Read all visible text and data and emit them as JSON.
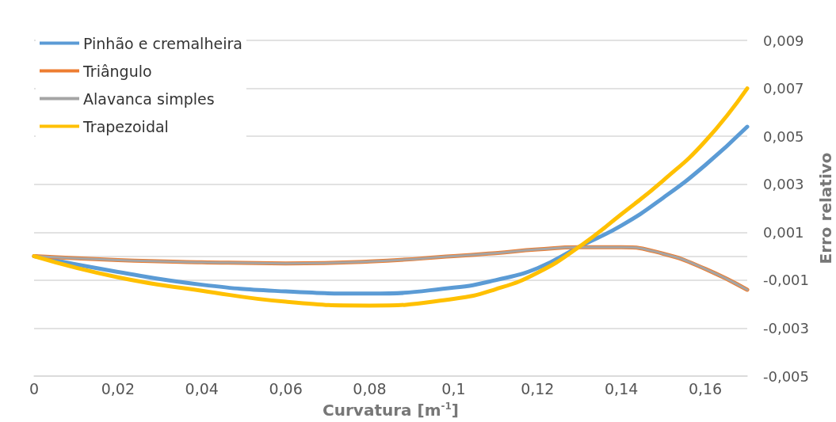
{
  "chart_data": {
    "type": "line",
    "xlabel": "Curvatura [m$^{-1}$]",
    "ylabel": "Erro relativo",
    "xlim": [
      0,
      0.17
    ],
    "xticks": [
      0,
      {
        "value": 0.02,
        "label": "0,02"
      },
      {
        "value": 0.04,
        "label": "0,04"
      },
      {
        "value": 0.06,
        "label": "0,06"
      },
      {
        "value": 0.08,
        "label": "0,08"
      },
      {
        "value": 0.1,
        "label": "0,1"
      },
      {
        "value": 0.12,
        "label": "0,12"
      },
      {
        "value": 0.14,
        "label": "0,14"
      },
      {
        "value": 0.16,
        "label": "0,16"
      }
    ],
    "ylim": [
      -0.005,
      0.009
    ],
    "yticks": [
      {
        "value": -0.005,
        "label": "-0,005"
      },
      {
        "value": -0.003,
        "label": "-0,003"
      },
      {
        "value": -0.001,
        "label": "-0,001"
      },
      {
        "value": 0.001,
        "label": "0,001"
      },
      {
        "value": 0.003,
        "label": "0,003"
      },
      {
        "value": 0.005,
        "label": "0,005"
      },
      {
        "value": 0.007,
        "label": "0,007"
      },
      {
        "value": 0.009,
        "label": "0,009"
      }
    ],
    "x": [
      0,
      0.02,
      0.04,
      0.06,
      0.08,
      0.1,
      0.11,
      0.12,
      0.13,
      0.14,
      0.15,
      0.16,
      0.17
    ],
    "series": [
      {
        "name": "Pinhão e cremalheira",
        "color": "#5b9bd5",
        "values": [
          0,
          -0.00066,
          -0.00119,
          -0.00147,
          -0.00156,
          -0.00131,
          -0.001,
          -0.0005,
          0.0004,
          0.00128,
          0.00244,
          0.0038,
          0.0054
        ]
      },
      {
        "name": "Triângulo",
        "color": "#ed7d31",
        "values": [
          0,
          -0.00016,
          -0.00025,
          -0.0003,
          -0.00022,
          0,
          0.00013,
          0.00028,
          0.00037,
          0.00037,
          0.0001,
          -0.00053,
          -0.0014
        ]
      },
      {
        "name": "Alavanca simples",
        "color": "#a5a5a5",
        "values": [
          0,
          -0.00016,
          -0.00025,
          -0.0003,
          -0.00022,
          0,
          0.00013,
          0.00028,
          0.00037,
          0.00037,
          0.0001,
          -0.00053,
          -0.0014
        ]
      },
      {
        "name": "Trapezoidal",
        "color": "#ffc000",
        "values": [
          0,
          -0.00088,
          -0.00144,
          -0.0019,
          -0.00206,
          -0.00178,
          -0.00138,
          -0.00069,
          0.0004,
          0.00175,
          0.00316,
          0.0048,
          0.007
        ]
      }
    ],
    "grid": "y",
    "legend": "top left",
    "marker": "none",
    "line_style": "solid"
  }
}
